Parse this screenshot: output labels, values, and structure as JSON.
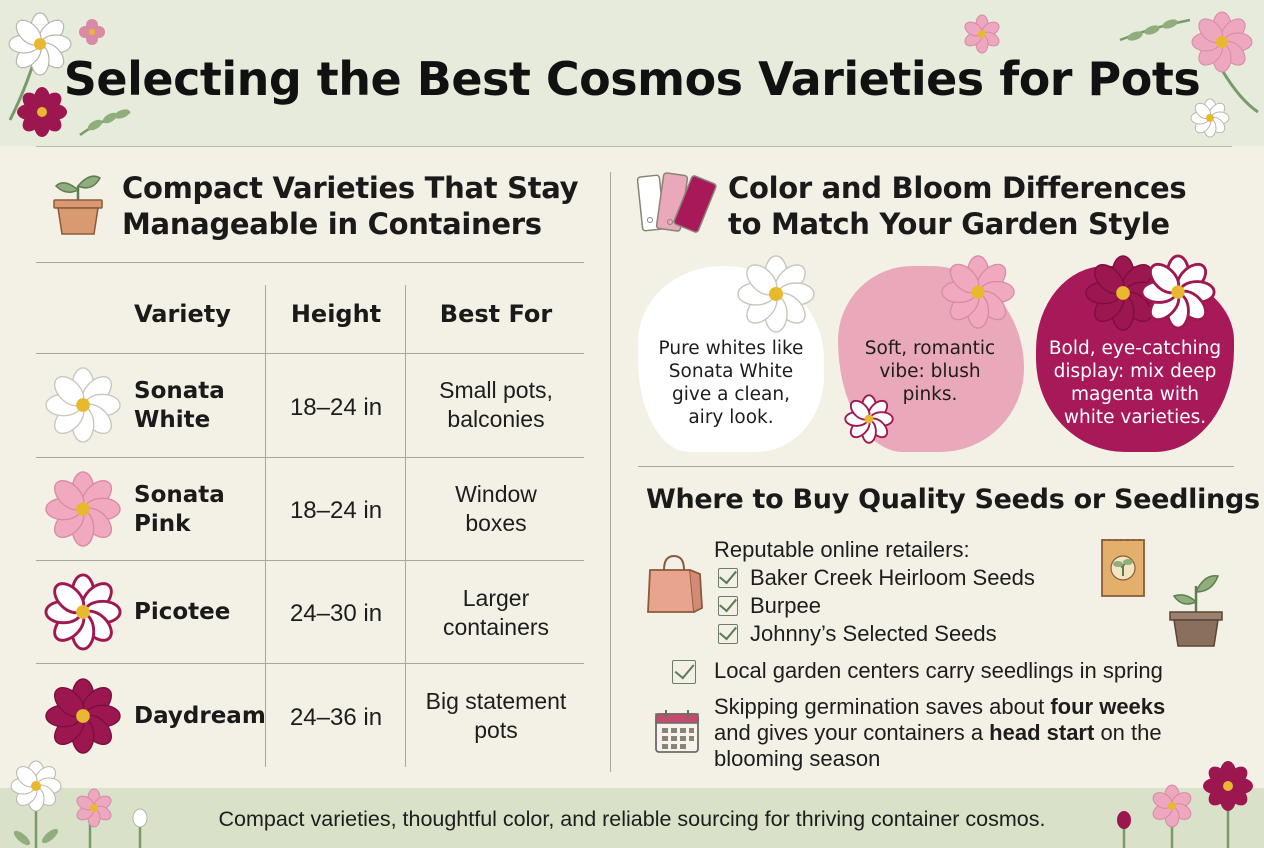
{
  "title": "Selecting the Best Cosmos Varieties for Pots",
  "compact_section": {
    "title_line1": "Compact Varieties That Stay",
    "title_line2": "Manageable in Containers",
    "icon": "potted-plant-icon",
    "columns": [
      "Variety",
      "Height",
      "Best For"
    ],
    "rows": [
      {
        "name_line1": "Sonata",
        "name_line2": "White",
        "height": "18–24 in",
        "best_line1": "Small pots,",
        "best_line2": "balconies",
        "flower_color": "#ffffff",
        "flower_edge": "#c9c6bd",
        "icon": "white-cosmos-icon"
      },
      {
        "name_line1": "Sonata",
        "name_line2": "Pink",
        "height": "18–24 in",
        "best_line1": "Window",
        "best_line2": "boxes",
        "flower_color": "#f1a9c0",
        "flower_edge": "#d98aa5",
        "icon": "pink-cosmos-icon"
      },
      {
        "name_line1": "Picotee",
        "name_line2": "",
        "height": "24–30 in",
        "best_line1": "Larger",
        "best_line2": "containers",
        "flower_color": "#ffffff",
        "flower_edge": "#a01850",
        "icon": "picotee-cosmos-icon"
      },
      {
        "name_line1": "Daydream",
        "name_line2": "",
        "height": "24–36 in",
        "best_line1": "Big statement",
        "best_line2": "pots",
        "flower_color": "#9c1650",
        "flower_edge": "#7a0f3e",
        "icon": "magenta-cosmos-icon"
      }
    ]
  },
  "color_section": {
    "title_line1": "Color and Bloom Differences",
    "title_line2": "to Match Your Garden Style",
    "icon": "color-swatch-icon",
    "cards": [
      {
        "lines": [
          "Pure whites like",
          "Sonata White",
          "give a clean,",
          "airy look."
        ],
        "bg": "#ffffff",
        "text_color": "#1d1d1d"
      },
      {
        "lines": [
          "Soft, romantic",
          "vibe: blush",
          "pinks."
        ],
        "bg": "#e9a9ba",
        "text_color": "#1d1d1d"
      },
      {
        "lines": [
          "Bold, eye-catching",
          "display: mix deep",
          "magenta with",
          "white varieties."
        ],
        "bg": "#a8195a",
        "text_color": "#ffffff"
      }
    ]
  },
  "buy_section": {
    "title": "Where to Buy Quality Seeds or Seedlings",
    "retailers_label": "Reputable online retailers:",
    "retailers": [
      "Baker Creek Heirloom Seeds",
      "Burpee",
      "Johnny’s Selected Seeds"
    ],
    "local": "Local garden centers carry seedlings in spring",
    "tip_part1": "Skipping germination saves about ",
    "tip_bold1": "four weeks",
    "tip_part2": "and gives your containers a ",
    "tip_bold2": "head start",
    "tip_part3": " on the",
    "tip_part4": "blooming season",
    "icons": [
      "shopping-bag-icon",
      "seed-packet-icon",
      "seedling-pot-icon",
      "calendar-icon"
    ]
  },
  "footer": "Compact varieties, thoughtful color, and reliable sourcing for thriving container cosmos.",
  "colors": {
    "header_bg": "#e7ebdc",
    "page_bg": "#f3f1e6",
    "footer_bg": "#d9e1c8",
    "magenta": "#a8195a",
    "pink": "#e9a9ba"
  }
}
